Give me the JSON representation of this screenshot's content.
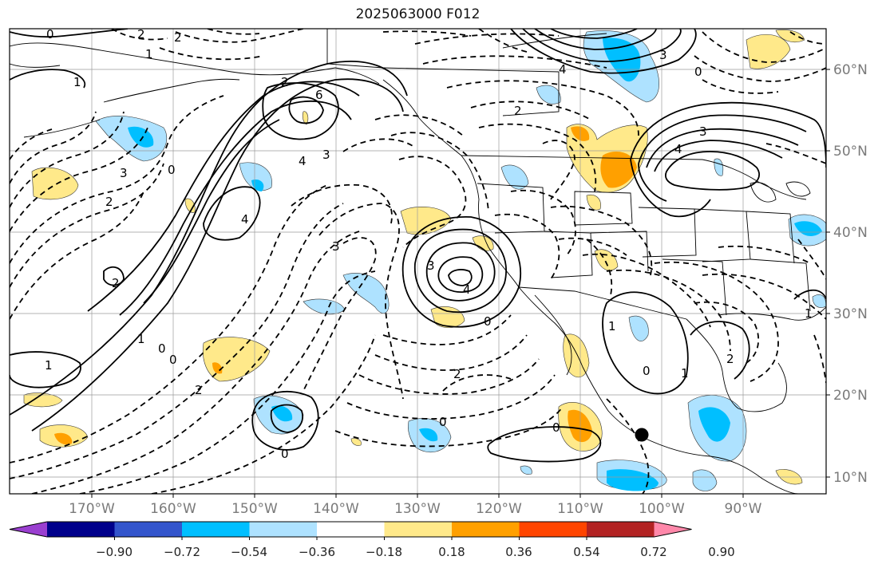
{
  "title": "2025063000 F012",
  "lat_labels": [
    "60°N",
    "50°N",
    "40°N",
    "30°N",
    "20°N",
    "10°N"
  ],
  "lon_labels": [
    "170°W",
    "160°W",
    "150°W",
    "140°W",
    "130°W",
    "120°W",
    "110°W",
    "100°W",
    "90°W"
  ],
  "colorbar": {
    "ticks": [
      "−0.90",
      "−0.72",
      "−0.54",
      "−0.36",
      "−0.18",
      "0.18",
      "0.36",
      "0.54",
      "0.72",
      "0.90"
    ],
    "colors": [
      "#9a3fd0",
      "#00008b",
      "#3355cc",
      "#00bfff",
      "#aee2ff",
      "#ffffff",
      "#ffe98a",
      "#ffa000",
      "#ff4500",
      "#b22222",
      "#ff88aa"
    ]
  },
  "contour_labels": [
    {
      "text": "0"
    },
    {
      "text": "2"
    },
    {
      "text": "2"
    },
    {
      "text": "1"
    },
    {
      "text": "1"
    },
    {
      "text": "6"
    },
    {
      "text": "4"
    },
    {
      "text": "3"
    },
    {
      "text": "4"
    },
    {
      "text": "2"
    },
    {
      "text": "3"
    },
    {
      "text": "0"
    },
    {
      "text": "2"
    },
    {
      "text": "2"
    },
    {
      "text": "3"
    },
    {
      "text": "4"
    },
    {
      "text": "0"
    },
    {
      "text": "1"
    },
    {
      "text": "0"
    },
    {
      "text": "0"
    },
    {
      "text": "2"
    },
    {
      "text": "0"
    },
    {
      "text": "0"
    },
    {
      "text": "1"
    },
    {
      "text": "3"
    },
    {
      "text": "4"
    },
    {
      "text": "3"
    },
    {
      "text": "4"
    },
    {
      "text": "2"
    },
    {
      "text": "1"
    },
    {
      "text": "0"
    },
    {
      "text": "1"
    },
    {
      "text": "2"
    },
    {
      "text": "0"
    },
    {
      "text": "2"
    },
    {
      "text": "1"
    },
    {
      "text": "0"
    },
    {
      "text": "3"
    }
  ]
}
